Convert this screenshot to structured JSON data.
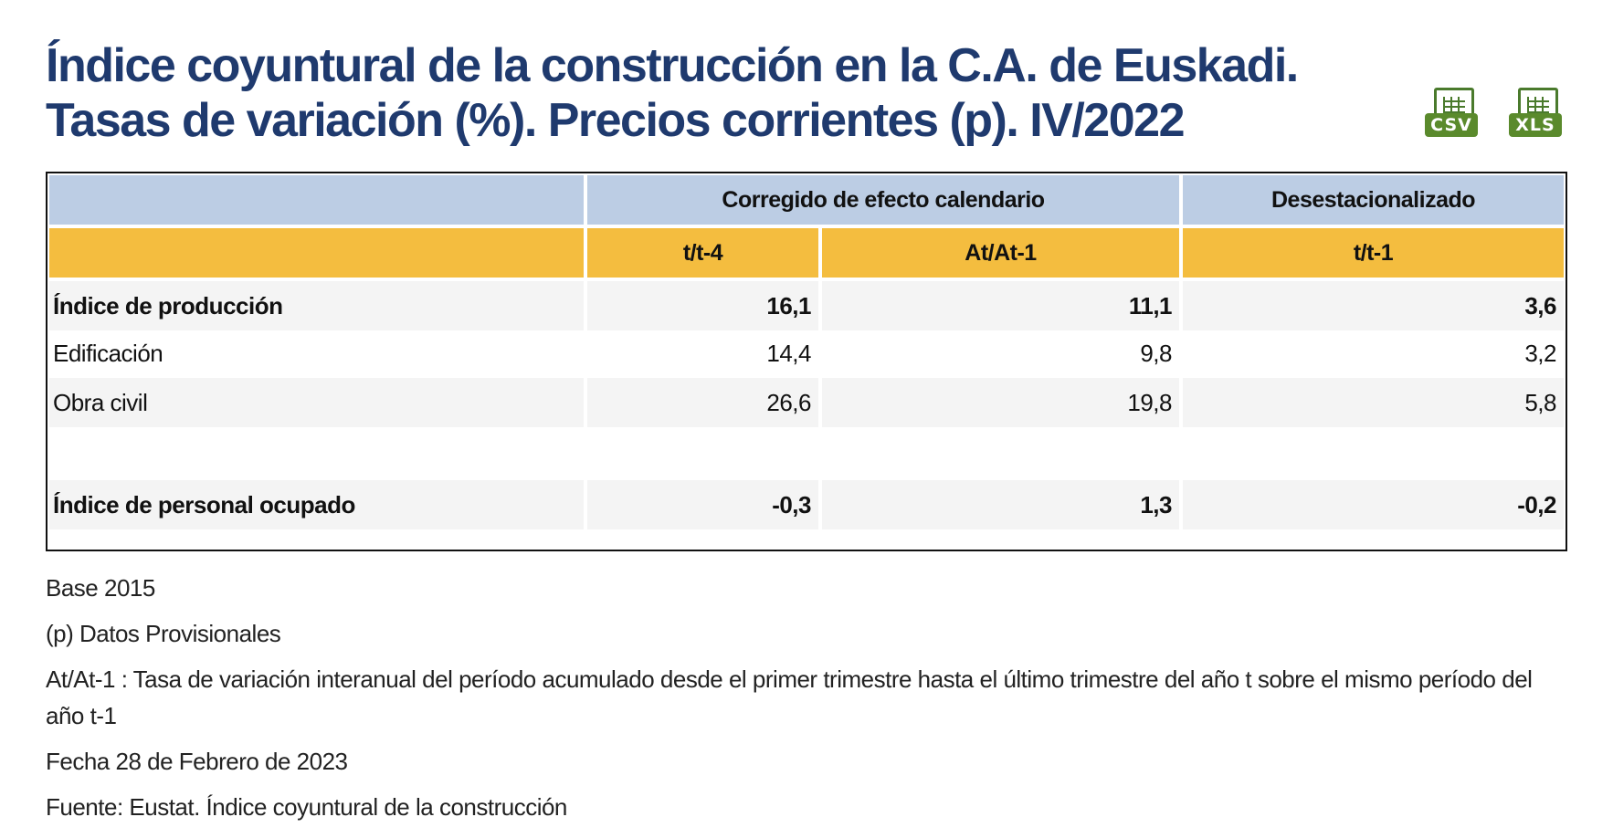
{
  "title": {
    "line1": "Índice coyuntural de la construcción en la C.A. de Euskadi.",
    "line2": "Tasas de variación (%). Precios corrientes (p). IV/2022"
  },
  "downloads": {
    "csv": {
      "label": "CSV",
      "icon": "csv-file-icon"
    },
    "xls": {
      "label": "XLS",
      "icon": "xls-file-icon"
    }
  },
  "table": {
    "group_headers": [
      "",
      "Corregido de efecto calendario",
      "Desestacionalizado"
    ],
    "sub_headers": [
      "",
      "t/t-4",
      "At/At-1",
      "t/t-1"
    ],
    "rows": [
      {
        "label": "Índice de producción",
        "values": [
          "16,1",
          "11,1",
          "3,6"
        ],
        "bold": true
      },
      {
        "label": "Edificación",
        "values": [
          "14,4",
          "9,8",
          "3,2"
        ],
        "bold": false
      },
      {
        "label": "Obra civil",
        "values": [
          "26,6",
          "19,8",
          "5,8"
        ],
        "bold": false
      },
      {
        "label": "",
        "values": [
          "",
          "",
          ""
        ],
        "bold": false
      },
      {
        "label": "Índice de personal ocupado",
        "values": [
          "-0,3",
          "1,3",
          "-0,2"
        ],
        "bold": true
      }
    ]
  },
  "notes": [
    "Base 2015",
    "(p) Datos Provisionales",
    "At/At-1 : Tasa de variación interanual del período acumulado desde el primer trimestre hasta el último trimestre del año t sobre el mismo período del año t-1",
    "Fecha 28 de Febrero de 2023",
    "Fuente: Eustat. Índice coyuntural de la construcción"
  ],
  "colors": {
    "title": "#1f3a6e",
    "header_blue": "#bccde4",
    "header_orange": "#f4bd3f",
    "row_shade": "#f4f4f4",
    "icon_green": "#5a8a2c"
  }
}
